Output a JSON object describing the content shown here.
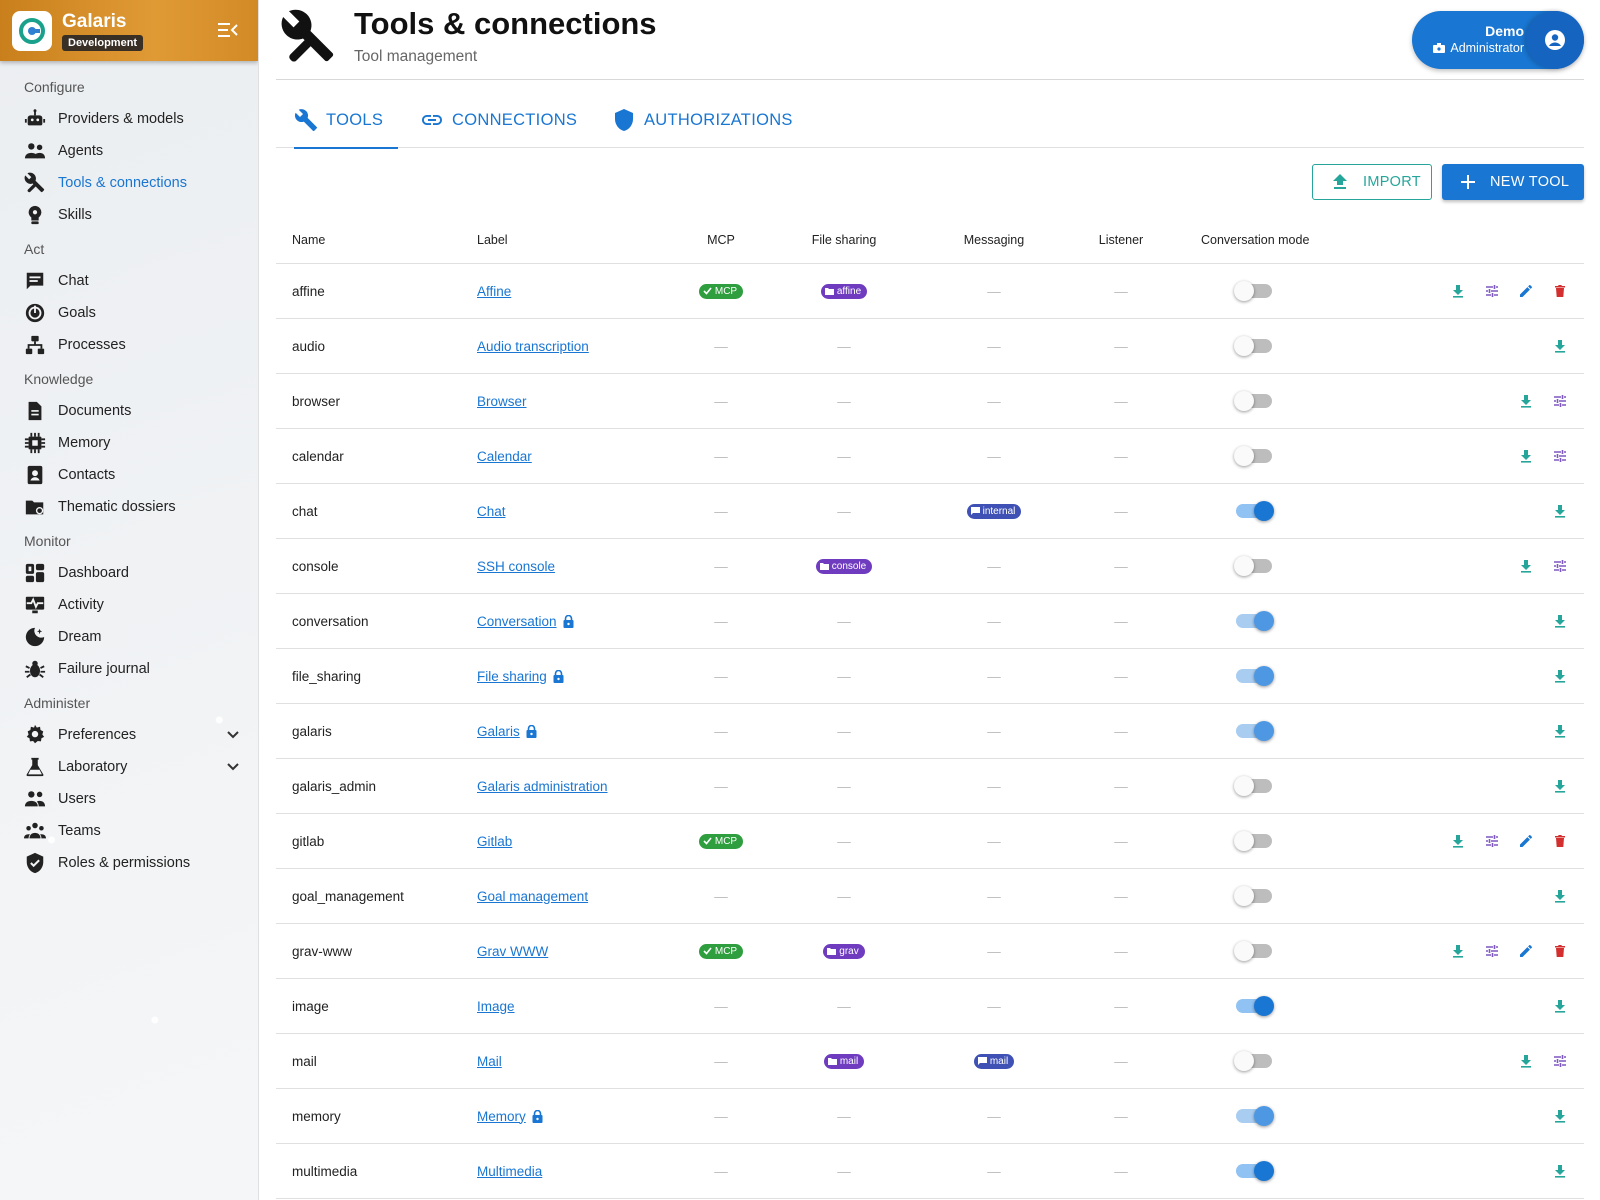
{
  "app": {
    "name": "Galaris",
    "badge": "Development"
  },
  "nav": [
    {
      "section": "Configure",
      "items": [
        {
          "label": "Providers & models",
          "icon": "robot-icon"
        },
        {
          "label": "Agents",
          "icon": "people-icon"
        },
        {
          "label": "Tools & connections",
          "icon": "tools-icon",
          "active": true
        },
        {
          "label": "Skills",
          "icon": "lightbulb-gear-icon"
        }
      ]
    },
    {
      "section": "Act",
      "items": [
        {
          "label": "Chat",
          "icon": "chat-icon"
        },
        {
          "label": "Goals",
          "icon": "target-icon"
        },
        {
          "label": "Processes",
          "icon": "flow-icon"
        }
      ]
    },
    {
      "section": "Knowledge",
      "items": [
        {
          "label": "Documents",
          "icon": "document-icon"
        },
        {
          "label": "Memory",
          "icon": "chip-icon"
        },
        {
          "label": "Contacts",
          "icon": "contact-icon"
        },
        {
          "label": "Thematic dossiers",
          "icon": "folder-icon"
        }
      ]
    },
    {
      "section": "Monitor",
      "items": [
        {
          "label": "Dashboard",
          "icon": "dashboard-icon"
        },
        {
          "label": "Activity",
          "icon": "activity-icon"
        },
        {
          "label": "Dream",
          "icon": "moon-icon"
        },
        {
          "label": "Failure journal",
          "icon": "bug-icon"
        }
      ]
    },
    {
      "section": "Administer",
      "items": [
        {
          "label": "Preferences",
          "icon": "gear-icon",
          "expandable": true
        },
        {
          "label": "Laboratory",
          "icon": "flask-icon",
          "expandable": true
        },
        {
          "label": "Users",
          "icon": "users-icon"
        },
        {
          "label": "Teams",
          "icon": "teams-icon"
        },
        {
          "label": "Roles & permissions",
          "icon": "shield-check-icon"
        }
      ]
    }
  ],
  "header": {
    "title": "Tools & connections",
    "subtitle": "Tool management"
  },
  "user": {
    "name": "Demo",
    "role": "Administrator"
  },
  "tabs": [
    {
      "label": "TOOLS",
      "icon": "wrench-icon",
      "active": true
    },
    {
      "label": "CONNECTIONS",
      "icon": "link-icon"
    },
    {
      "label": "AUTHORIZATIONS",
      "icon": "shield-icon"
    }
  ],
  "buttons": {
    "import": "IMPORT",
    "new_tool": "NEW TOOL"
  },
  "table": {
    "columns": [
      "Name",
      "Label",
      "MCP",
      "File sharing",
      "Messaging",
      "Listener",
      "Conversation mode"
    ],
    "dash": "—",
    "rows": [
      {
        "name": "affine",
        "label": "Affine",
        "locked": false,
        "mcp": "MCP",
        "file": "affine",
        "msg": null,
        "conv": "off",
        "actions": [
          "download",
          "settings",
          "edit",
          "delete"
        ]
      },
      {
        "name": "audio",
        "label": "Audio transcription",
        "locked": false,
        "mcp": null,
        "file": null,
        "msg": null,
        "conv": "off",
        "actions": [
          "download"
        ]
      },
      {
        "name": "browser",
        "label": "Browser",
        "locked": false,
        "mcp": null,
        "file": null,
        "msg": null,
        "conv": "off",
        "actions": [
          "download",
          "settings"
        ]
      },
      {
        "name": "calendar",
        "label": "Calendar",
        "locked": false,
        "mcp": null,
        "file": null,
        "msg": null,
        "conv": "off",
        "actions": [
          "download",
          "settings"
        ]
      },
      {
        "name": "chat",
        "label": "Chat",
        "locked": false,
        "mcp": null,
        "file": null,
        "msg": "internal",
        "conv": "on",
        "actions": [
          "download"
        ]
      },
      {
        "name": "console",
        "label": "SSH console",
        "locked": false,
        "mcp": null,
        "file": "console",
        "msg": null,
        "conv": "off",
        "actions": [
          "download",
          "settings"
        ]
      },
      {
        "name": "conversation",
        "label": "Conversation",
        "locked": true,
        "mcp": null,
        "file": null,
        "msg": null,
        "conv": "locked-on",
        "actions": [
          "download"
        ]
      },
      {
        "name": "file_sharing",
        "label": "File sharing",
        "locked": true,
        "mcp": null,
        "file": null,
        "msg": null,
        "conv": "locked-on",
        "actions": [
          "download"
        ]
      },
      {
        "name": "galaris",
        "label": "Galaris",
        "locked": true,
        "mcp": null,
        "file": null,
        "msg": null,
        "conv": "locked-on",
        "actions": [
          "download"
        ]
      },
      {
        "name": "galaris_admin",
        "label": "Galaris administration",
        "locked": false,
        "mcp": null,
        "file": null,
        "msg": null,
        "conv": "off",
        "actions": [
          "download"
        ]
      },
      {
        "name": "gitlab",
        "label": "Gitlab",
        "locked": false,
        "mcp": "MCP",
        "file": null,
        "msg": null,
        "conv": "off",
        "actions": [
          "download",
          "settings",
          "edit",
          "delete"
        ]
      },
      {
        "name": "goal_management",
        "label": "Goal management",
        "locked": false,
        "mcp": null,
        "file": null,
        "msg": null,
        "conv": "off",
        "actions": [
          "download"
        ]
      },
      {
        "name": "grav-www",
        "label": "Grav WWW",
        "locked": false,
        "mcp": "MCP",
        "file": "grav",
        "msg": null,
        "conv": "off",
        "actions": [
          "download",
          "settings",
          "edit",
          "delete"
        ]
      },
      {
        "name": "image",
        "label": "Image",
        "locked": false,
        "mcp": null,
        "file": null,
        "msg": null,
        "conv": "on",
        "actions": [
          "download"
        ]
      },
      {
        "name": "mail",
        "label": "Mail",
        "locked": false,
        "mcp": null,
        "file": "mail",
        "msg": "mail",
        "conv": "off",
        "actions": [
          "download",
          "settings"
        ]
      },
      {
        "name": "memory",
        "label": "Memory",
        "locked": true,
        "mcp": null,
        "file": null,
        "msg": null,
        "conv": "locked-on",
        "actions": [
          "download"
        ]
      },
      {
        "name": "multimedia",
        "label": "Multimedia",
        "locked": false,
        "mcp": null,
        "file": null,
        "msg": null,
        "conv": "on",
        "actions": [
          "download"
        ]
      }
    ]
  },
  "colors": {
    "primary": "#1976d2",
    "teal": "#26a69a",
    "purple": "#7e57c2",
    "red": "#d32f2f",
    "mcp_green": "#2e9e3e",
    "brand_orange": "#d9912c"
  }
}
